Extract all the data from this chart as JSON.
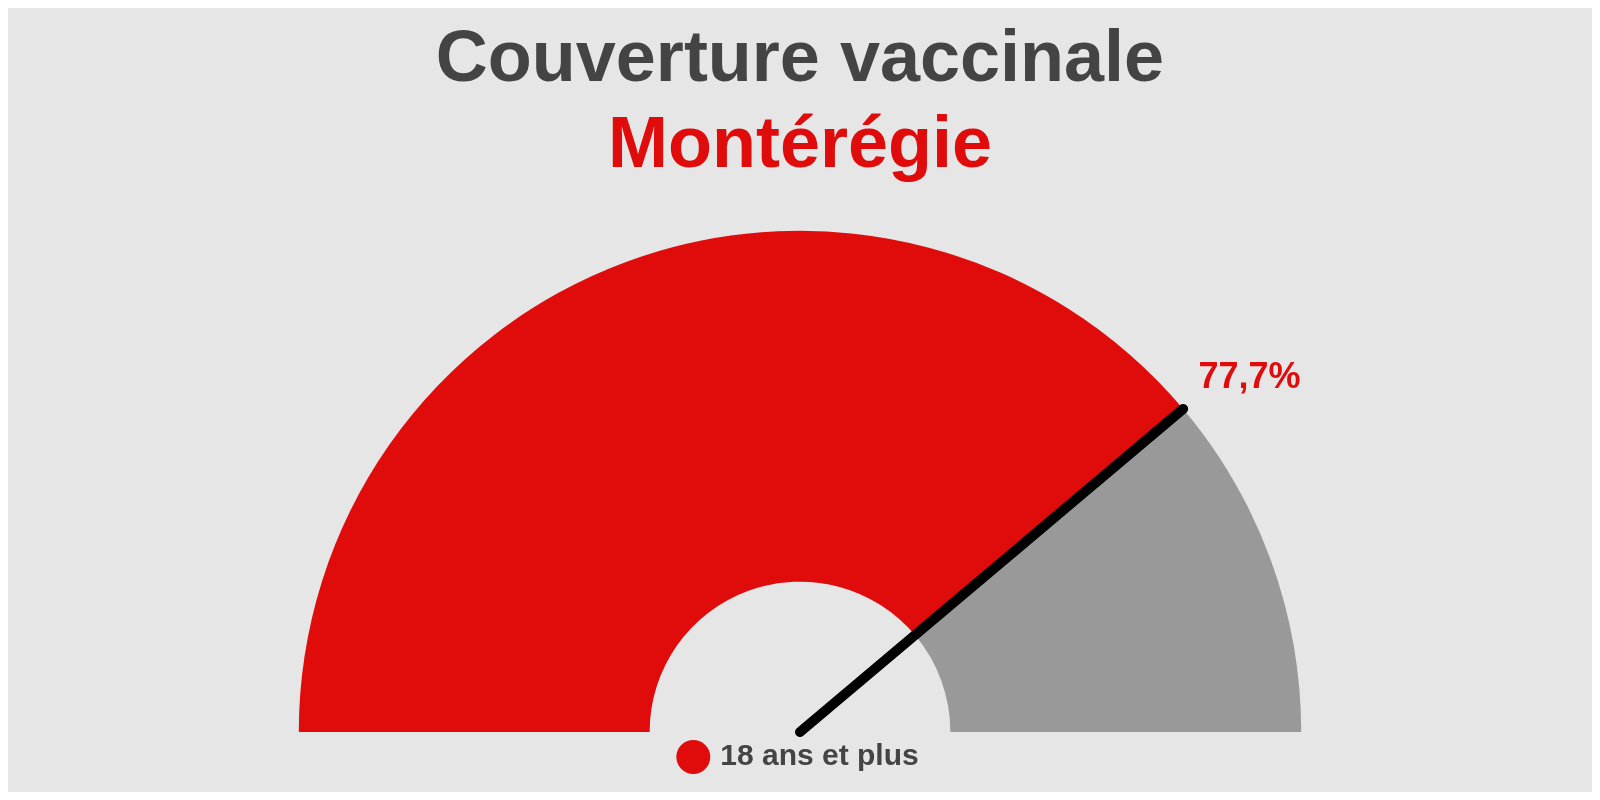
{
  "chart_data": {
    "type": "donut",
    "title": "Couverture vaccinale",
    "subtitle": "Montérégie",
    "categories": [
      "18 ans et plus",
      null
    ],
    "values": [
      77.7,
      22.3
    ],
    "colors": [
      "#e00c0c",
      "#999999"
    ],
    "value_labels": [
      "77,7%",
      null
    ],
    "needle": "18 ans et plus",
    "legend": "bottom"
  }
}
